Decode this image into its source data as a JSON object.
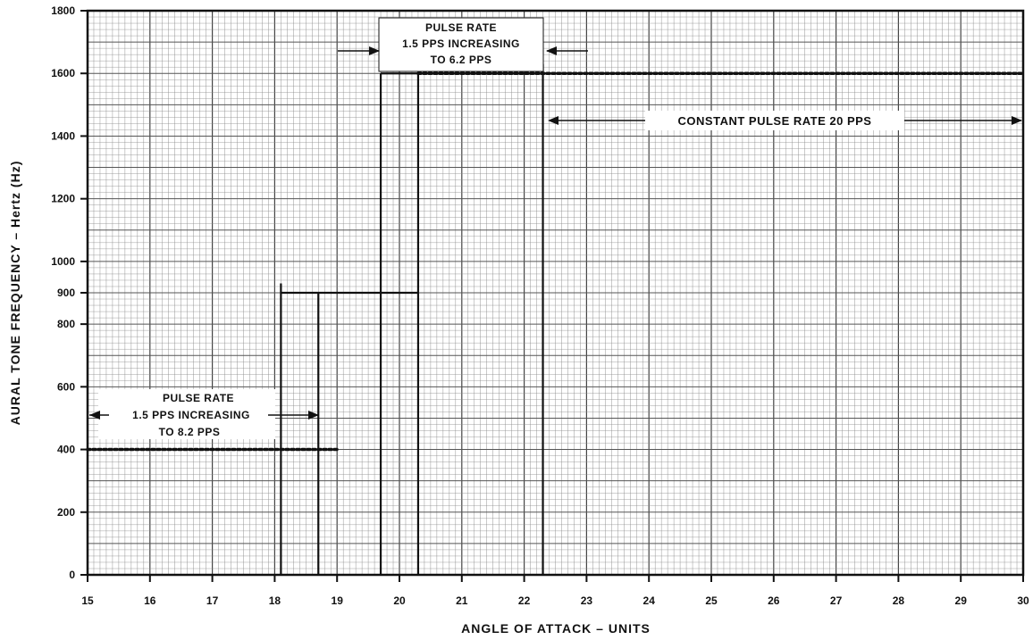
{
  "chart_data": {
    "type": "line",
    "title": "",
    "xlabel": "ANGLE OF ATTACK – UNITS",
    "ylabel": "AURAL TONE FREQUENCY – Hertz (Hz)",
    "xlim": [
      15,
      30
    ],
    "ylim": [
      0,
      1800
    ],
    "x_ticks": [
      "15",
      "16",
      "17",
      "18",
      "19",
      "20",
      "21",
      "22",
      "23",
      "24",
      "25",
      "26",
      "27",
      "28",
      "29",
      "30"
    ],
    "y_ticks": [
      {
        "value": 0,
        "label": "0"
      },
      {
        "value": 200,
        "label": "200"
      },
      {
        "value": 400,
        "label": "400"
      },
      {
        "value": 600,
        "label": "600"
      },
      {
        "value": 800,
        "label": "800"
      },
      {
        "value": 900,
        "label": "900"
      },
      {
        "value": 1000,
        "label": "1000"
      },
      {
        "value": 1200,
        "label": "1200"
      },
      {
        "value": 1400,
        "label": "1400"
      },
      {
        "value": 1600,
        "label": "1600"
      },
      {
        "value": 1800,
        "label": "1800"
      }
    ],
    "grid": true,
    "series": [
      {
        "name": "",
        "style": "dotted",
        "points": [
          [
            15,
            400
          ],
          [
            19,
            400
          ]
        ]
      },
      {
        "name": "",
        "style": "solid",
        "points": [
          [
            18.1,
            0
          ],
          [
            18.1,
            930
          ]
        ]
      },
      {
        "name": "",
        "style": "solid",
        "points": [
          [
            18.7,
            0
          ],
          [
            18.7,
            900
          ]
        ]
      },
      {
        "name": "",
        "style": "solid",
        "points": [
          [
            18.1,
            900
          ],
          [
            20.3,
            900
          ]
        ]
      },
      {
        "name": "",
        "style": "solid",
        "points": [
          [
            19.7,
            0
          ],
          [
            19.7,
            1600
          ]
        ]
      },
      {
        "name": "",
        "style": "solid",
        "points": [
          [
            20.3,
            0
          ],
          [
            20.3,
            1600
          ]
        ]
      },
      {
        "name": "",
        "style": "solid",
        "points": [
          [
            19.7,
            1600
          ],
          [
            20.3,
            1600
          ]
        ]
      },
      {
        "name": "",
        "style": "solid",
        "points": [
          [
            22.3,
            0
          ],
          [
            22.3,
            1630
          ]
        ]
      },
      {
        "name": "",
        "style": "dotted",
        "points": [
          [
            20.3,
            1600
          ],
          [
            30,
            1600
          ]
        ]
      }
    ],
    "annotations": [
      {
        "lines": [
          "PULSE RATE",
          "1.5 PPS INCREASING",
          "TO 8.2 PPS"
        ],
        "range": [
          15,
          18.7
        ]
      },
      {
        "lines": [
          "PULSE RATE",
          "1.5 PPS INCREASING",
          "TO 6.2 PPS"
        ],
        "range": [
          19.7,
          22.3
        ]
      },
      {
        "lines": [
          "CONSTANT PULSE RATE 20 PPS"
        ],
        "range": [
          22.3,
          30
        ]
      }
    ]
  },
  "colors": {
    "line": "#111111",
    "grid": "#8a8a8a",
    "background": "#ffffff"
  }
}
